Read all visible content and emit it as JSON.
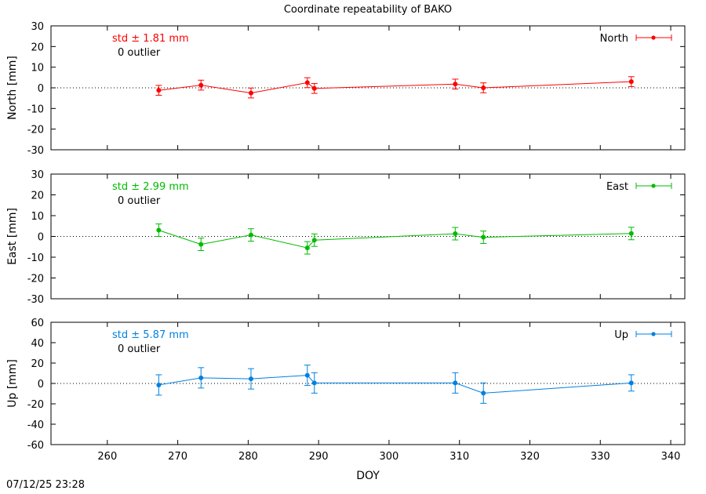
{
  "chart_data": [
    {
      "type": "scatter",
      "title": "Coordinate repeatability of BAKO",
      "ylabel": "North [mm]",
      "xlim": [
        252,
        342
      ],
      "ylim": [
        -30,
        30
      ],
      "yticks": [
        -30,
        -20,
        -10,
        0,
        10,
        20,
        30
      ],
      "color": "#ff0000",
      "std_text": "std ± 1.81 mm",
      "outlier_text": "0 outlier",
      "series": [
        {
          "name": "North",
          "x": [
            267.3,
            273.3,
            280.4,
            288.4,
            289.4,
            309.4,
            313.4,
            334.4
          ],
          "y": [
            -1.2,
            1.3,
            -2.5,
            2.5,
            -0.3,
            1.8,
            0.0,
            3.0
          ],
          "err": [
            2.4,
            2.4,
            2.4,
            2.4,
            2.4,
            2.4,
            2.4,
            2.4
          ]
        }
      ]
    },
    {
      "type": "scatter",
      "ylabel": "East [mm]",
      "xlim": [
        252,
        342
      ],
      "ylim": [
        -30,
        30
      ],
      "yticks": [
        -30,
        -20,
        -10,
        0,
        10,
        20,
        30
      ],
      "color": "#00bb00",
      "std_text": "std ± 2.99 mm",
      "outlier_text": "0 outlier",
      "series": [
        {
          "name": "East",
          "x": [
            267.3,
            273.3,
            280.4,
            288.4,
            289.4,
            309.4,
            313.4,
            334.4
          ],
          "y": [
            3.0,
            -3.8,
            0.7,
            -5.5,
            -1.8,
            1.3,
            -0.4,
            1.4
          ],
          "err": [
            3.0,
            3.0,
            3.0,
            3.0,
            3.0,
            3.0,
            3.0,
            3.0
          ]
        }
      ]
    },
    {
      "type": "scatter",
      "ylabel": "Up [mm]",
      "xlabel": "DOY",
      "xlim": [
        252,
        342
      ],
      "ylim": [
        -60,
        60
      ],
      "yticks": [
        -60,
        -40,
        -20,
        0,
        20,
        40,
        60
      ],
      "xticks": [
        260,
        270,
        280,
        290,
        300,
        310,
        320,
        330,
        340
      ],
      "color": "#0080e0",
      "std_text": "std ± 5.87 mm",
      "outlier_text": "0 outlier",
      "series": [
        {
          "name": "Up",
          "x": [
            267.3,
            273.3,
            280.4,
            288.4,
            289.4,
            309.4,
            313.4,
            334.4
          ],
          "y": [
            -1.5,
            5.5,
            4.5,
            8.0,
            0.5,
            0.5,
            -9.5,
            0.5
          ],
          "err": [
            10,
            10,
            10,
            10,
            10,
            10,
            10,
            8
          ]
        }
      ]
    }
  ],
  "timestamp": "07/12/25 23:28"
}
